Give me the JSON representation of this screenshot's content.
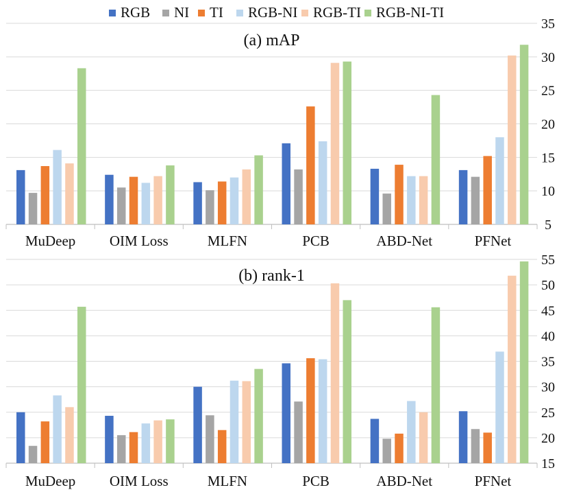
{
  "colors": {
    "RGB": "#4472c4",
    "NI": "#a5a5a5",
    "TI": "#ed7d31",
    "RGB-NI": "#bdd7ee",
    "RGB-TI": "#f8cbad",
    "RGB-NI-TI": "#a9d18e",
    "axis": "#bfbfbf",
    "grid": "#d9d9d9"
  },
  "legend": {
    "position": "top",
    "items": [
      "RGB",
      "NI",
      "TI",
      "RGB-NI",
      "RGB-TI",
      "RGB-NI-TI"
    ]
  },
  "chart_data": [
    {
      "type": "bar",
      "title": "(a) mAP",
      "categories": [
        "MuDeep",
        "OIM Loss",
        "MLFN",
        "PCB",
        "ABD-Net",
        "PFNet"
      ],
      "ylim": [
        5,
        35
      ],
      "yticks": [
        5,
        10,
        15,
        20,
        25,
        30,
        35
      ],
      "yaxis_side": "right",
      "grid": true,
      "series": [
        {
          "name": "RGB",
          "values": [
            13.1,
            12.4,
            11.3,
            17.1,
            13.3,
            13.1
          ]
        },
        {
          "name": "NI",
          "values": [
            9.7,
            10.5,
            10.1,
            13.2,
            9.6,
            12.1
          ]
        },
        {
          "name": "TI",
          "values": [
            13.7,
            12.1,
            11.4,
            22.6,
            13.9,
            15.2
          ]
        },
        {
          "name": "RGB-NI",
          "values": [
            16.1,
            11.2,
            12.0,
            17.4,
            12.2,
            18.0
          ]
        },
        {
          "name": "RGB-TI",
          "values": [
            14.1,
            12.2,
            13.2,
            29.1,
            12.2,
            30.2
          ]
        },
        {
          "name": "RGB-NI-TI",
          "values": [
            28.3,
            13.8,
            15.3,
            29.3,
            24.3,
            31.8
          ]
        }
      ]
    },
    {
      "type": "bar",
      "title": "(b) rank-1",
      "categories": [
        "MuDeep",
        "OIM Loss",
        "MLFN",
        "PCB",
        "ABD-Net",
        "PFNet"
      ],
      "ylim": [
        15,
        55
      ],
      "yticks": [
        15,
        20,
        25,
        30,
        35,
        40,
        45,
        50,
        55
      ],
      "yaxis_side": "right",
      "grid": true,
      "series": [
        {
          "name": "RGB",
          "values": [
            25.0,
            24.3,
            30.0,
            34.6,
            23.7,
            25.2
          ]
        },
        {
          "name": "NI",
          "values": [
            18.4,
            20.5,
            24.4,
            27.1,
            19.8,
            21.7
          ]
        },
        {
          "name": "TI",
          "values": [
            23.2,
            21.1,
            21.5,
            35.6,
            20.8,
            21.0
          ]
        },
        {
          "name": "RGB-NI",
          "values": [
            28.3,
            22.8,
            31.2,
            35.4,
            27.2,
            36.9
          ]
        },
        {
          "name": "RGB-TI",
          "values": [
            26.0,
            23.4,
            31.1,
            50.3,
            25.0,
            51.8
          ]
        },
        {
          "name": "RGB-NI-TI",
          "values": [
            45.7,
            23.6,
            33.5,
            47.0,
            45.6,
            54.6
          ]
        }
      ]
    }
  ]
}
